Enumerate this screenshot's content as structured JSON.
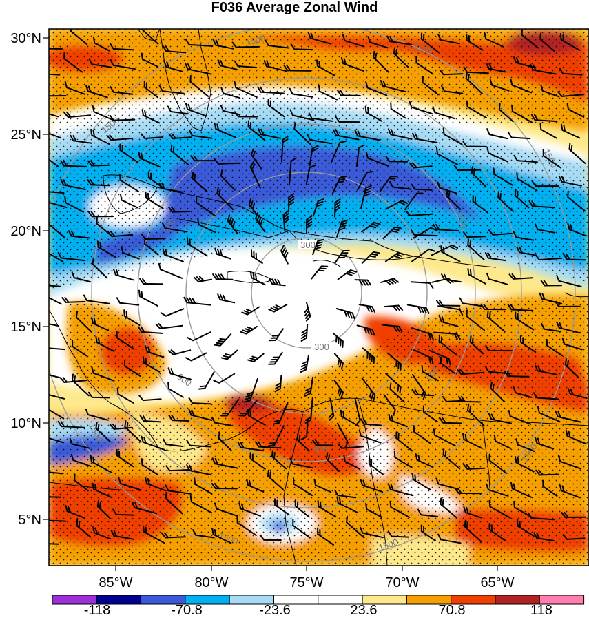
{
  "title": "F036 Average Zonal Wind",
  "map": {
    "lat_ticks": [
      {
        "label": "30°N",
        "value": 30
      },
      {
        "label": "25°N",
        "value": 25
      },
      {
        "label": "20°N",
        "value": 20
      },
      {
        "label": "15°N",
        "value": 15
      },
      {
        "label": "10°N",
        "value": 10
      },
      {
        "label": "5°N",
        "value": 5
      }
    ],
    "lon_ticks": [
      {
        "label": "85°W",
        "value": -85
      },
      {
        "label": "80°W",
        "value": -80
      },
      {
        "label": "75°W",
        "value": -75
      },
      {
        "label": "70°W",
        "value": -70
      },
      {
        "label": "65°W",
        "value": -65
      }
    ],
    "lat_range": [
      2.5,
      30.5
    ],
    "lon_range": [
      -88.5,
      -61.5
    ],
    "storm_center": {
      "lat": 16.8,
      "lon": -75.4
    },
    "range_rings": {
      "color": "#999999",
      "rings": [
        {
          "value": 300,
          "label": "300"
        },
        {
          "value": 900,
          "label": "900"
        },
        {
          "value": 1500,
          "label": "1500"
        }
      ]
    }
  },
  "colorbar": {
    "colors": [
      "#9b30d9",
      "#000090",
      "#3a5ad8",
      "#00b0f0",
      "#a8dcf4",
      "#ffffff",
      "#ffffff",
      "#fde98c",
      "#f5a000",
      "#f04000",
      "#b22222",
      "#ff80b0"
    ],
    "labels": [
      {
        "text": "-118",
        "boundary": 1
      },
      {
        "text": "-70.8",
        "boundary": 3
      },
      {
        "text": "-23.6",
        "boundary": 5
      },
      {
        "text": "23.6",
        "boundary": 7
      },
      {
        "text": "70.8",
        "boundary": 9
      },
      {
        "text": "118",
        "boundary": 11
      }
    ]
  }
}
